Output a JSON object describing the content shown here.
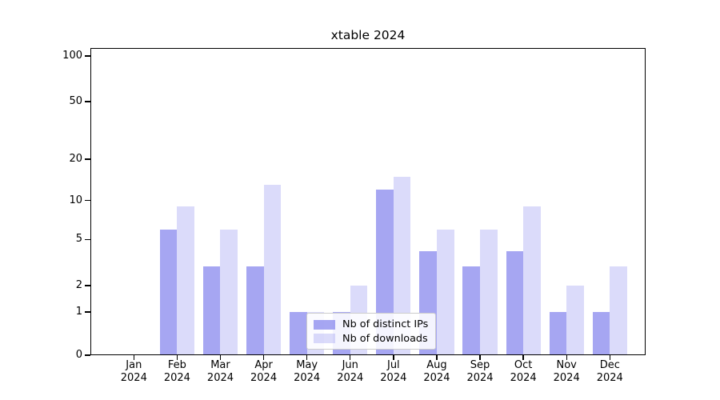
{
  "chart_data": {
    "type": "bar",
    "title": "xtable 2024",
    "categories": [
      "Jan",
      "Feb",
      "Mar",
      "Apr",
      "May",
      "Jun",
      "Jul",
      "Aug",
      "Sep",
      "Oct",
      "Nov",
      "Dec"
    ],
    "x_year": "2024",
    "series": [
      {
        "name": "Nb of distinct IPs",
        "color": "rgba(136,136,238,0.75)",
        "values": [
          0,
          6,
          3,
          3,
          1,
          1,
          12,
          4,
          3,
          4,
          1,
          1
        ]
      },
      {
        "name": "Nb of downloads",
        "color": "rgba(136,136,238,0.30)",
        "values": [
          0,
          9,
          6,
          13,
          1,
          2,
          15,
          6,
          6,
          9,
          2,
          3
        ]
      }
    ],
    "ylabel": "",
    "xlabel": "",
    "y_axis": {
      "scale": "quasi-log (linear 0-1, compressed log above)",
      "tick_values": [
        0,
        1,
        2,
        5,
        10,
        20,
        50,
        100
      ],
      "tick_labels": [
        "0",
        "1",
        "2",
        "5",
        "10",
        "20",
        "50",
        "100"
      ],
      "major_grid_values": [
        1,
        10,
        100
      ],
      "minor_grid_values": [
        2,
        3,
        4,
        5,
        6,
        7,
        8,
        9,
        20,
        30,
        40,
        50,
        60,
        70,
        80,
        90
      ],
      "range": [
        0,
        130
      ]
    },
    "legend": {
      "position": "lower center",
      "entries": [
        "Nb of distinct IPs",
        "Nb of downloads"
      ]
    },
    "grid": "on",
    "colors": {
      "bar_base": "#8888ee",
      "major_grid": "#b0b0b0",
      "minor_grid": "#ebebeb",
      "axis": "#000000",
      "background": "#ffffff"
    }
  }
}
